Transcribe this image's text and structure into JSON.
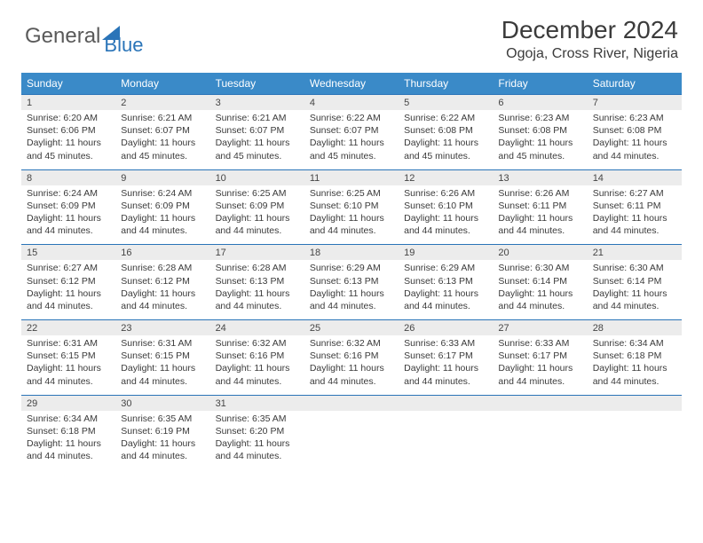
{
  "brand": {
    "part1": "General",
    "part2": "Blue"
  },
  "title": "December 2024",
  "location": "Ogoja, Cross River, Nigeria",
  "colors": {
    "header_bg": "#3a8ac8",
    "row_sep": "#2a74b8",
    "daynum_bg": "#ececec",
    "text": "#3a3a3a",
    "title_text": "#3b3b3b"
  },
  "dow": [
    "Sunday",
    "Monday",
    "Tuesday",
    "Wednesday",
    "Thursday",
    "Friday",
    "Saturday"
  ],
  "weeks": [
    {
      "nums": [
        "1",
        "2",
        "3",
        "4",
        "5",
        "6",
        "7"
      ],
      "cells": [
        {
          "sr": "6:20 AM",
          "ss": "6:06 PM",
          "dl": "11 hours and 45 minutes."
        },
        {
          "sr": "6:21 AM",
          "ss": "6:07 PM",
          "dl": "11 hours and 45 minutes."
        },
        {
          "sr": "6:21 AM",
          "ss": "6:07 PM",
          "dl": "11 hours and 45 minutes."
        },
        {
          "sr": "6:22 AM",
          "ss": "6:07 PM",
          "dl": "11 hours and 45 minutes."
        },
        {
          "sr": "6:22 AM",
          "ss": "6:08 PM",
          "dl": "11 hours and 45 minutes."
        },
        {
          "sr": "6:23 AM",
          "ss": "6:08 PM",
          "dl": "11 hours and 45 minutes."
        },
        {
          "sr": "6:23 AM",
          "ss": "6:08 PM",
          "dl": "11 hours and 44 minutes."
        }
      ]
    },
    {
      "nums": [
        "8",
        "9",
        "10",
        "11",
        "12",
        "13",
        "14"
      ],
      "cells": [
        {
          "sr": "6:24 AM",
          "ss": "6:09 PM",
          "dl": "11 hours and 44 minutes."
        },
        {
          "sr": "6:24 AM",
          "ss": "6:09 PM",
          "dl": "11 hours and 44 minutes."
        },
        {
          "sr": "6:25 AM",
          "ss": "6:09 PM",
          "dl": "11 hours and 44 minutes."
        },
        {
          "sr": "6:25 AM",
          "ss": "6:10 PM",
          "dl": "11 hours and 44 minutes."
        },
        {
          "sr": "6:26 AM",
          "ss": "6:10 PM",
          "dl": "11 hours and 44 minutes."
        },
        {
          "sr": "6:26 AM",
          "ss": "6:11 PM",
          "dl": "11 hours and 44 minutes."
        },
        {
          "sr": "6:27 AM",
          "ss": "6:11 PM",
          "dl": "11 hours and 44 minutes."
        }
      ]
    },
    {
      "nums": [
        "15",
        "16",
        "17",
        "18",
        "19",
        "20",
        "21"
      ],
      "cells": [
        {
          "sr": "6:27 AM",
          "ss": "6:12 PM",
          "dl": "11 hours and 44 minutes."
        },
        {
          "sr": "6:28 AM",
          "ss": "6:12 PM",
          "dl": "11 hours and 44 minutes."
        },
        {
          "sr": "6:28 AM",
          "ss": "6:13 PM",
          "dl": "11 hours and 44 minutes."
        },
        {
          "sr": "6:29 AM",
          "ss": "6:13 PM",
          "dl": "11 hours and 44 minutes."
        },
        {
          "sr": "6:29 AM",
          "ss": "6:13 PM",
          "dl": "11 hours and 44 minutes."
        },
        {
          "sr": "6:30 AM",
          "ss": "6:14 PM",
          "dl": "11 hours and 44 minutes."
        },
        {
          "sr": "6:30 AM",
          "ss": "6:14 PM",
          "dl": "11 hours and 44 minutes."
        }
      ]
    },
    {
      "nums": [
        "22",
        "23",
        "24",
        "25",
        "26",
        "27",
        "28"
      ],
      "cells": [
        {
          "sr": "6:31 AM",
          "ss": "6:15 PM",
          "dl": "11 hours and 44 minutes."
        },
        {
          "sr": "6:31 AM",
          "ss": "6:15 PM",
          "dl": "11 hours and 44 minutes."
        },
        {
          "sr": "6:32 AM",
          "ss": "6:16 PM",
          "dl": "11 hours and 44 minutes."
        },
        {
          "sr": "6:32 AM",
          "ss": "6:16 PM",
          "dl": "11 hours and 44 minutes."
        },
        {
          "sr": "6:33 AM",
          "ss": "6:17 PM",
          "dl": "11 hours and 44 minutes."
        },
        {
          "sr": "6:33 AM",
          "ss": "6:17 PM",
          "dl": "11 hours and 44 minutes."
        },
        {
          "sr": "6:34 AM",
          "ss": "6:18 PM",
          "dl": "11 hours and 44 minutes."
        }
      ]
    },
    {
      "nums": [
        "29",
        "30",
        "31",
        "",
        "",
        "",
        ""
      ],
      "cells": [
        {
          "sr": "6:34 AM",
          "ss": "6:18 PM",
          "dl": "11 hours and 44 minutes."
        },
        {
          "sr": "6:35 AM",
          "ss": "6:19 PM",
          "dl": "11 hours and 44 minutes."
        },
        {
          "sr": "6:35 AM",
          "ss": "6:20 PM",
          "dl": "11 hours and 44 minutes."
        },
        null,
        null,
        null,
        null
      ]
    }
  ],
  "labels": {
    "sunrise": "Sunrise: ",
    "sunset": "Sunset: ",
    "daylight": "Daylight: "
  }
}
